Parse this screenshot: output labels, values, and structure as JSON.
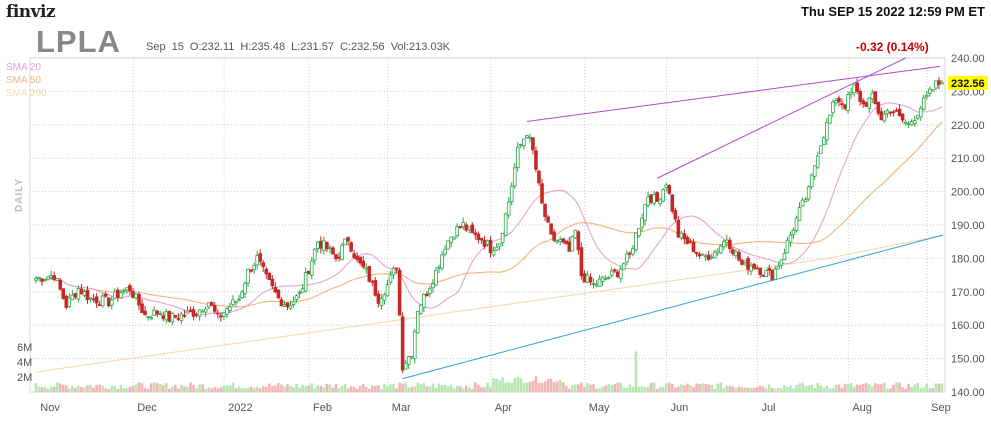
{
  "header": {
    "logo": "finviz",
    "datetime": "Thu SEP 15 2022 12:59 PM ET",
    "ticker": "LPLA",
    "ohlc": "Sep 15   O:232.11  H:235.48  L:231.57  C:232.56   Vol:213.03K",
    "change": "-0.32 (0.14%)",
    "timeframe": "DAILY"
  },
  "legend": [
    {
      "label": "SMA 20",
      "color": "#e6a3d4"
    },
    {
      "label": "SMA 50",
      "color": "#f2b47a"
    },
    {
      "label": "SMA 200",
      "color": "#f5dcae"
    }
  ],
  "colors": {
    "up": "#27a844",
    "down": "#c62828",
    "vol_up": "#b8e6b2",
    "vol_down": "#f2b5b5",
    "trend_upper": "#b24ccc",
    "trend_lower": "#2ba3d4",
    "last_price_bg": "#ffff00"
  },
  "chart_data": {
    "type": "candlestick",
    "y_ticks": [
      "240.00",
      "230.00",
      "220.00",
      "210.00",
      "200.00",
      "190.00",
      "180.00",
      "170.00",
      "160.00",
      "150.00",
      "140.00"
    ],
    "ylim": [
      140,
      240
    ],
    "last_price": "232.56",
    "volume_ticks": [
      "6M",
      "4M",
      "2M"
    ],
    "x_labels": [
      "Nov",
      "Dec",
      "2022",
      "Feb",
      "Mar",
      "Apr",
      "May",
      "Jun",
      "Jul",
      "Aug",
      "Sep"
    ],
    "close_path": [
      [
        0,
        174
      ],
      [
        6,
        175
      ],
      [
        10,
        166
      ],
      [
        14,
        171
      ],
      [
        18,
        168
      ],
      [
        24,
        167
      ],
      [
        28,
        170
      ],
      [
        31,
        171
      ],
      [
        36,
        163
      ],
      [
        41,
        164
      ],
      [
        44,
        162
      ],
      [
        48,
        163
      ],
      [
        53,
        164
      ],
      [
        57,
        167
      ],
      [
        60,
        162
      ],
      [
        63,
        165
      ],
      [
        67,
        168
      ],
      [
        70,
        176
      ],
      [
        73,
        180
      ],
      [
        76,
        174
      ],
      [
        80,
        168
      ],
      [
        83,
        166
      ],
      [
        87,
        169
      ],
      [
        90,
        177
      ],
      [
        93,
        185
      ],
      [
        96,
        183
      ],
      [
        99,
        180
      ],
      [
        103,
        186
      ],
      [
        106,
        179
      ],
      [
        109,
        176
      ],
      [
        113,
        168
      ],
      [
        116,
        172
      ],
      [
        119,
        178
      ],
      [
        121,
        148
      ],
      [
        124,
        152
      ],
      [
        126,
        165
      ],
      [
        129,
        170
      ],
      [
        132,
        176
      ],
      [
        135,
        184
      ],
      [
        138,
        188
      ],
      [
        141,
        190
      ],
      [
        144,
        187
      ],
      [
        147,
        186
      ],
      [
        150,
        183
      ],
      [
        153,
        185
      ],
      [
        156,
        197
      ],
      [
        159,
        212
      ],
      [
        162,
        218
      ],
      [
        164,
        212
      ],
      [
        167,
        196
      ],
      [
        170,
        186
      ],
      [
        173,
        185
      ],
      [
        176,
        182
      ],
      [
        178,
        188
      ],
      [
        180,
        175
      ],
      [
        184,
        172
      ],
      [
        188,
        174
      ],
      [
        192,
        176
      ],
      [
        196,
        181
      ],
      [
        198,
        187
      ],
      [
        200,
        193
      ],
      [
        202,
        199
      ],
      [
        205,
        197
      ],
      [
        208,
        203
      ],
      [
        212,
        187
      ],
      [
        216,
        184
      ],
      [
        220,
        180
      ],
      [
        224,
        182
      ],
      [
        228,
        186
      ],
      [
        233,
        178
      ],
      [
        237,
        178
      ],
      [
        240,
        176
      ],
      [
        243,
        175
      ],
      [
        246,
        180
      ],
      [
        249,
        187
      ],
      [
        252,
        194
      ],
      [
        255,
        200
      ],
      [
        258,
        212
      ],
      [
        261,
        220
      ],
      [
        264,
        228
      ],
      [
        267,
        226
      ],
      [
        270,
        231
      ],
      [
        273,
        226
      ],
      [
        276,
        228
      ],
      [
        279,
        222
      ],
      [
        282,
        225
      ],
      [
        285,
        222
      ],
      [
        288,
        220
      ],
      [
        291,
        224
      ],
      [
        294,
        228
      ],
      [
        297,
        232
      ],
      [
        299,
        232.56
      ]
    ]
  }
}
